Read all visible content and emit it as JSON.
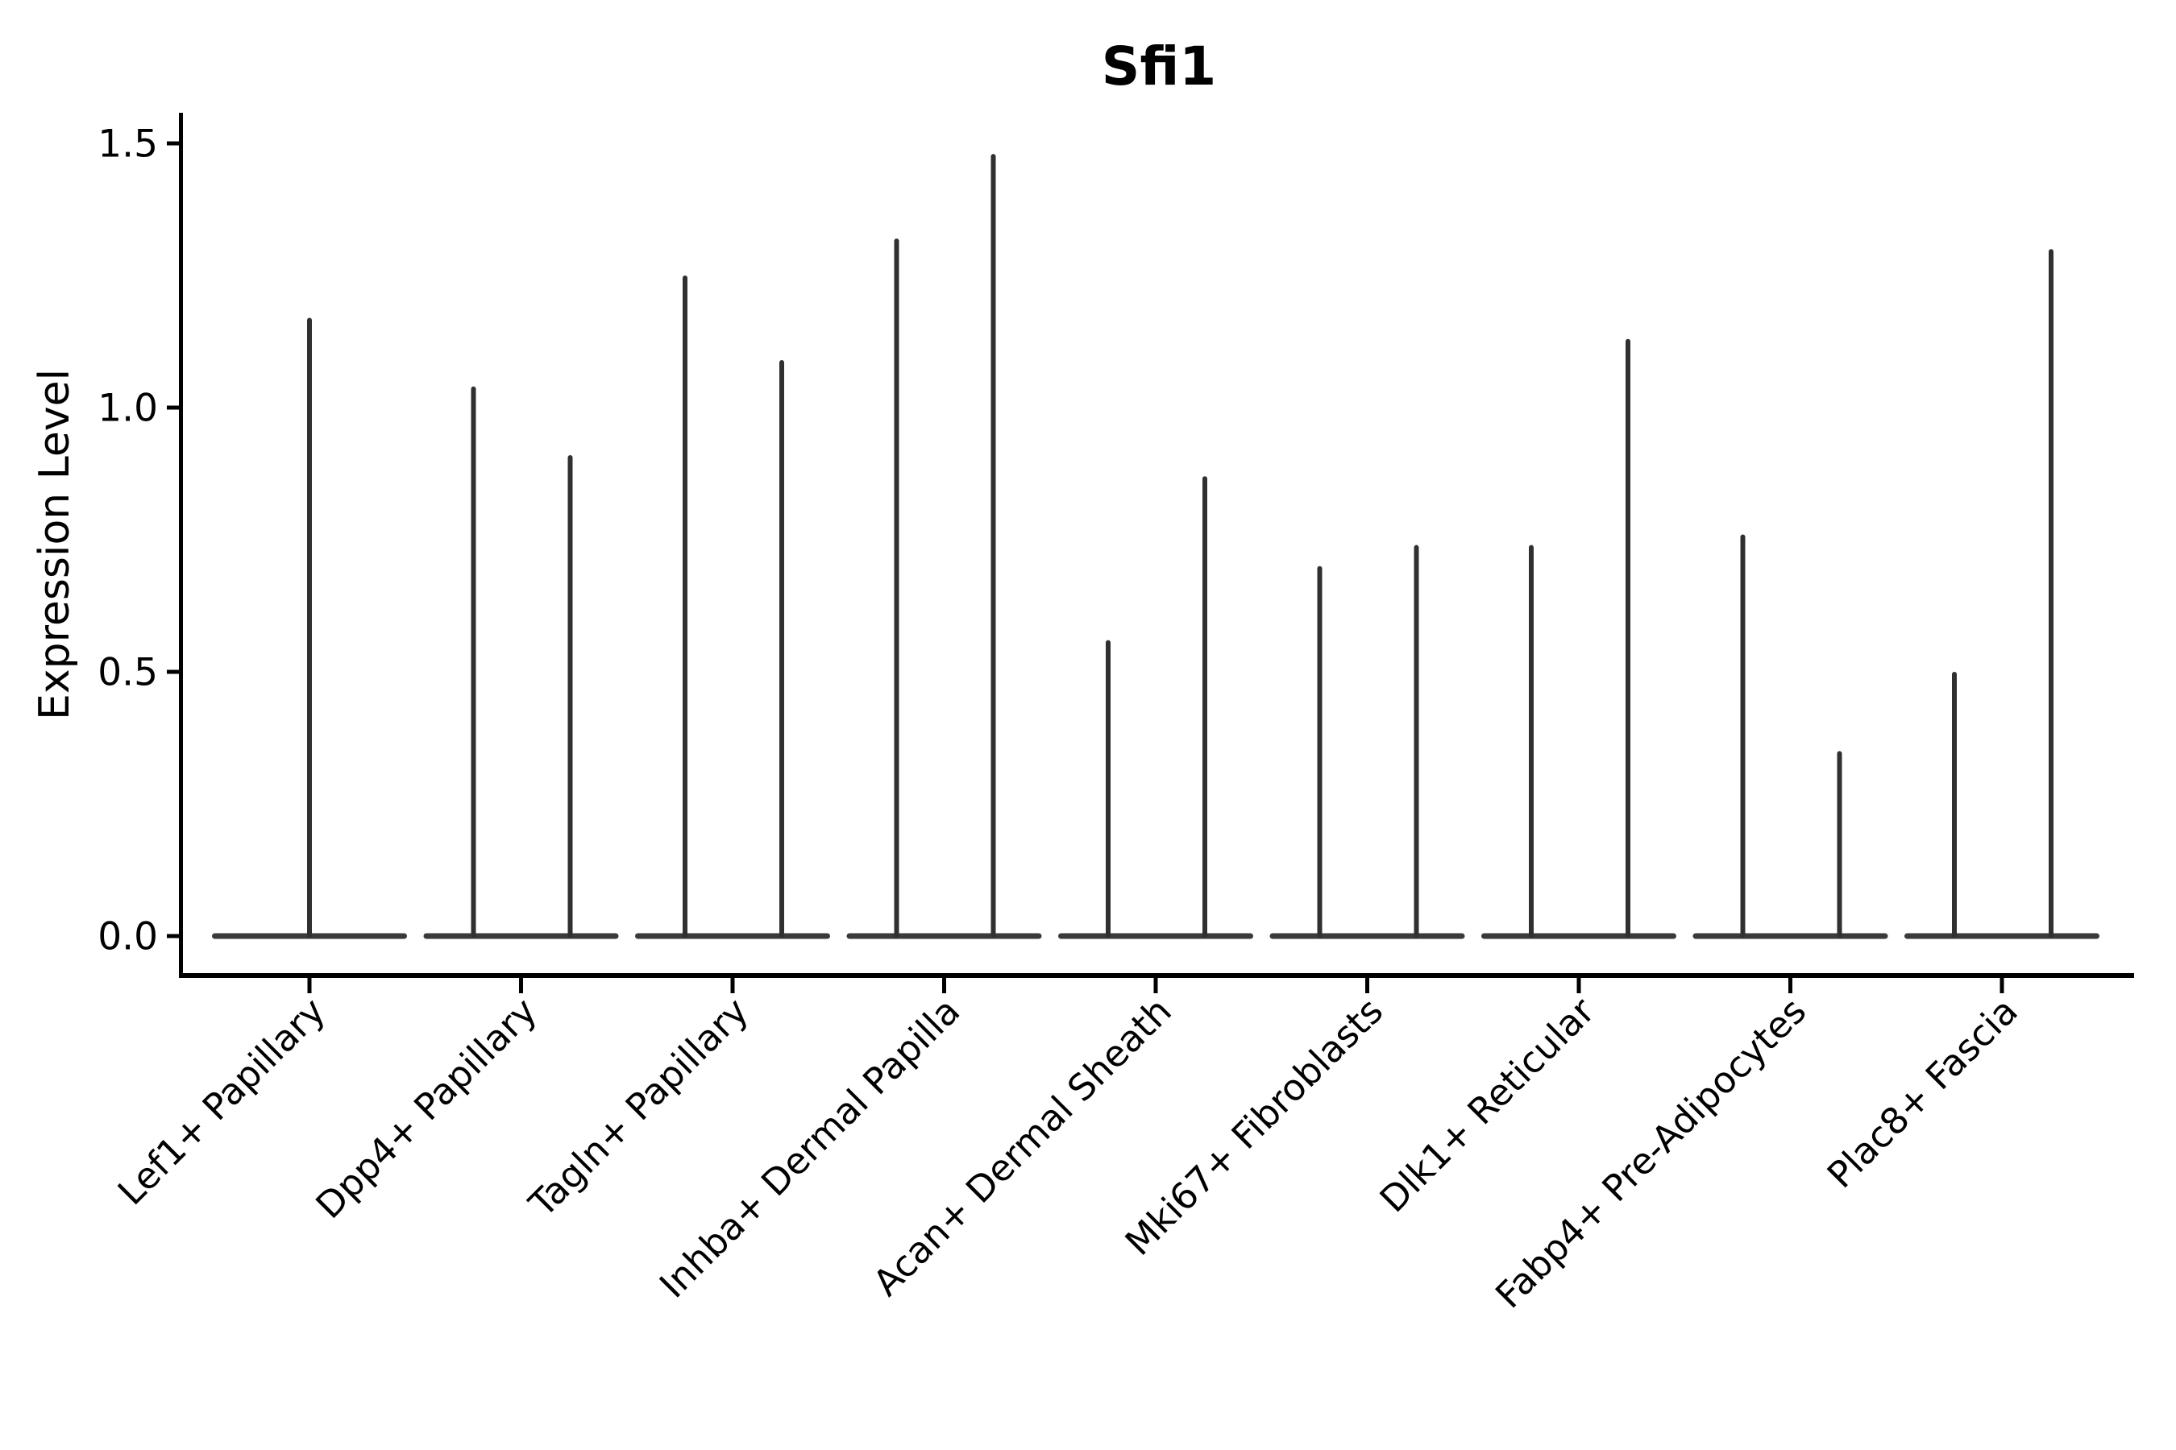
{
  "chart_data": {
    "type": "violin",
    "title": "Sfi1",
    "ylabel": "Expression Level",
    "xlabel": "",
    "ylim": [
      0.0,
      1.5
    ],
    "yticks": [
      {
        "value": 0.0,
        "label": "0.0"
      },
      {
        "value": 0.5,
        "label": "0.5"
      },
      {
        "value": 1.0,
        "label": "1.0"
      },
      {
        "value": 1.5,
        "label": "1.5"
      }
    ],
    "grid": "off",
    "legend": "none",
    "violin_style": "thin-spike violins (near-zero width) over flat zero baseline; one violin for first category, two split violins per category otherwise",
    "categories": [
      {
        "label": "Lef1+ Papillary",
        "violin_max_expression": [
          1.17
        ]
      },
      {
        "label": "Dpp4+ Papillary",
        "violin_max_expression": [
          1.04,
          0.91
        ]
      },
      {
        "label": "Tagln+ Papillary",
        "violin_max_expression": [
          1.25,
          1.09
        ]
      },
      {
        "label": "Inhba+ Dermal Papilla",
        "violin_max_expression": [
          1.32,
          1.48
        ]
      },
      {
        "label": "Acan+ Dermal Sheath",
        "violin_max_expression": [
          0.56,
          0.87
        ]
      },
      {
        "label": "Mki67+ Fibroblasts",
        "violin_max_expression": [
          0.7,
          0.74
        ]
      },
      {
        "label": "Dlk1+ Reticular",
        "violin_max_expression": [
          0.74,
          1.13
        ]
      },
      {
        "label": "Fabp4+ Pre-Adipocytes",
        "violin_max_expression": [
          0.76,
          0.35
        ]
      },
      {
        "label": "Plac8+ Fascia",
        "violin_max_expression": [
          0.5,
          1.3
        ]
      }
    ],
    "colors": {
      "violin": "#303030",
      "baseline": "#3a3a3a",
      "axis": "#000000",
      "text": "#000000",
      "background": "#ffffff"
    }
  }
}
